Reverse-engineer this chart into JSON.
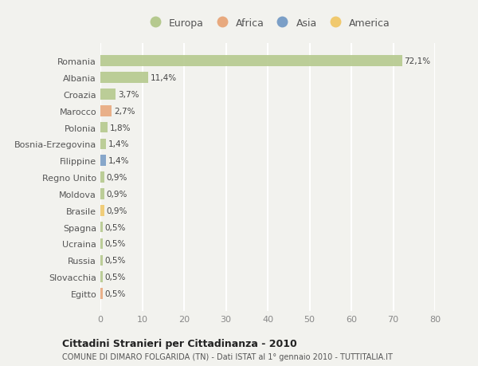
{
  "categories": [
    "Romania",
    "Albania",
    "Croazia",
    "Marocco",
    "Polonia",
    "Bosnia-Erzegovina",
    "Filippine",
    "Regno Unito",
    "Moldova",
    "Brasile",
    "Spagna",
    "Ucraina",
    "Russia",
    "Slovacchia",
    "Egitto"
  ],
  "values": [
    72.1,
    11.4,
    3.7,
    2.7,
    1.8,
    1.4,
    1.4,
    0.9,
    0.9,
    0.9,
    0.5,
    0.5,
    0.5,
    0.5,
    0.5
  ],
  "labels": [
    "72,1%",
    "11,4%",
    "3,7%",
    "2,7%",
    "1,8%",
    "1,4%",
    "1,4%",
    "0,9%",
    "0,9%",
    "0,9%",
    "0,5%",
    "0,5%",
    "0,5%",
    "0,5%",
    "0,5%"
  ],
  "colors": [
    "#b5c98e",
    "#b5c98e",
    "#b5c98e",
    "#e8a97e",
    "#b5c98e",
    "#b5c98e",
    "#7b9fc7",
    "#b5c98e",
    "#b5c98e",
    "#f0c96e",
    "#b5c98e",
    "#b5c98e",
    "#b5c98e",
    "#b5c98e",
    "#e8a97e"
  ],
  "continent_colors": {
    "Europa": "#b5c98e",
    "Africa": "#e8a97e",
    "Asia": "#7b9fc7",
    "America": "#f0c96e"
  },
  "legend_labels": [
    "Europa",
    "Africa",
    "Asia",
    "America"
  ],
  "xlim": [
    0,
    80
  ],
  "xticks": [
    0,
    10,
    20,
    30,
    40,
    50,
    60,
    70,
    80
  ],
  "title": "Cittadini Stranieri per Cittadinanza - 2010",
  "subtitle": "COMUNE DI DIMARO FOLGARIDA (TN) - Dati ISTAT al 1° gennaio 2010 - TUTTITALIA.IT",
  "background_color": "#f2f2ee",
  "grid_color": "#ffffff",
  "bar_height": 0.65,
  "label_fontsize": 7.5,
  "ytick_fontsize": 8.0,
  "xtick_fontsize": 8.0
}
